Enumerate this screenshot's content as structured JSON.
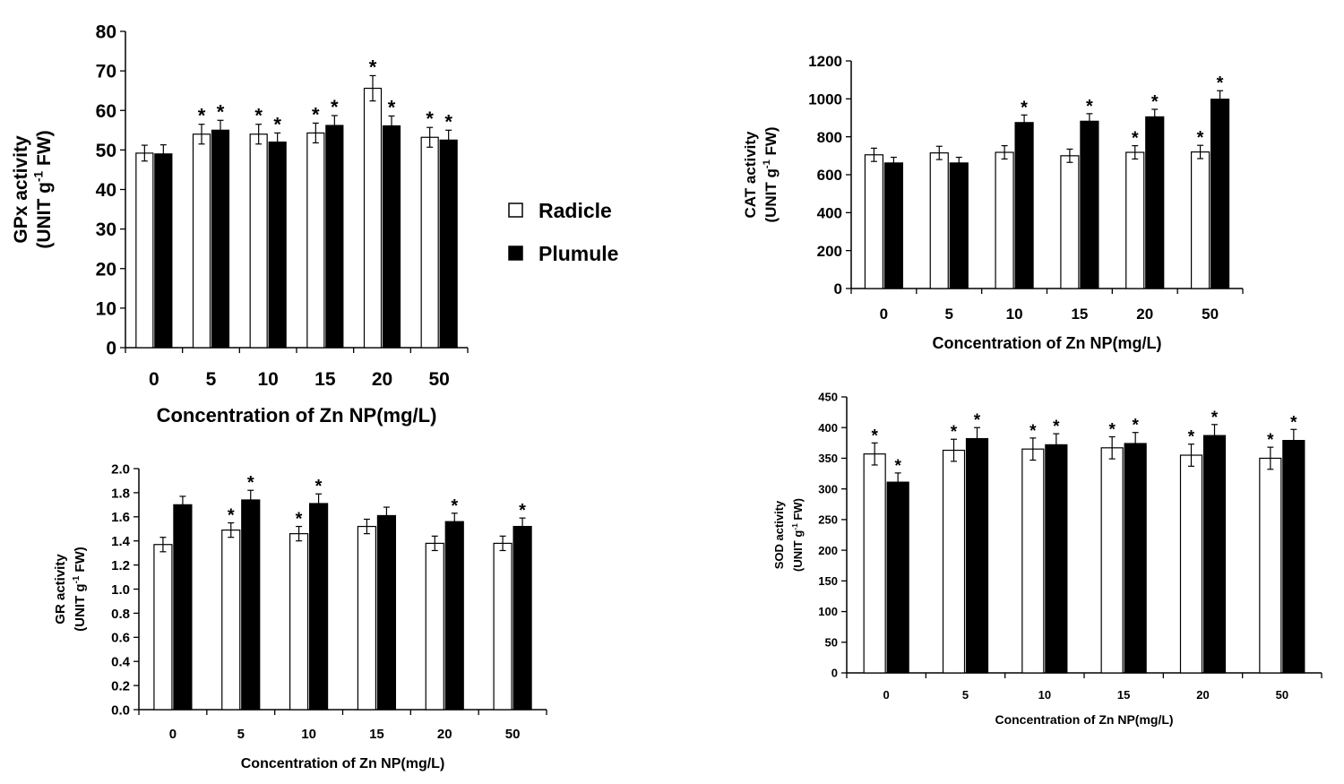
{
  "legend": {
    "entries": [
      {
        "name": "Radicle",
        "color": "#ffffff"
      },
      {
        "name": "Plumule",
        "color": "#000000"
      }
    ]
  },
  "chart_data": [
    {
      "id": "gpx",
      "type": "bar",
      "categories": [
        "0",
        "5",
        "10",
        "15",
        "20",
        "50"
      ],
      "xlabel": "Concentration of Zn NP(mg/L)",
      "ylabel_line1": "GPx activity",
      "ylabel_line2": "(UNIT g-1 FW)",
      "ylim": [
        0,
        80
      ],
      "yticks": [
        "0",
        "10",
        "20",
        "30",
        "40",
        "50",
        "60",
        "70",
        "80"
      ],
      "grid": false,
      "series": [
        {
          "name": "Radicle",
          "values": [
            49.2,
            54,
            54,
            54.3,
            65.6,
            53.2
          ],
          "errors": [
            2,
            2.5,
            2.5,
            2.5,
            3.2,
            2.5
          ],
          "significant": [
            false,
            true,
            true,
            true,
            true,
            true
          ]
        },
        {
          "name": "Plumule",
          "values": [
            49,
            55,
            52,
            56.2,
            56.1,
            52.5
          ],
          "errors": [
            2.3,
            2.5,
            2.3,
            2.5,
            2.5,
            2.5
          ],
          "significant": [
            false,
            true,
            true,
            true,
            true,
            true
          ]
        }
      ]
    },
    {
      "id": "cat",
      "type": "bar",
      "categories": [
        "0",
        "5",
        "10",
        "15",
        "20",
        "50"
      ],
      "xlabel": "Concentration of Zn NP(mg/L)",
      "ylabel_line1": "CAT  activity",
      "ylabel_line2": "(UNIT g-1 FW)",
      "ylim": [
        0,
        1200
      ],
      "yticks": [
        "0",
        "200",
        "400",
        "600",
        "800",
        "1000",
        "1200"
      ],
      "grid": false,
      "series": [
        {
          "name": "Radicle",
          "values": [
            705,
            715,
            718,
            700,
            718,
            720
          ],
          "errors": [
            35,
            35,
            35,
            35,
            35,
            35
          ],
          "significant": [
            false,
            false,
            false,
            false,
            true,
            true
          ]
        },
        {
          "name": "Plumule",
          "values": [
            662,
            662,
            875,
            882,
            905,
            998
          ],
          "errors": [
            30,
            30,
            40,
            40,
            40,
            45
          ],
          "significant": [
            false,
            false,
            true,
            true,
            true,
            true
          ]
        }
      ]
    },
    {
      "id": "gr",
      "type": "bar",
      "categories": [
        "0",
        "5",
        "10",
        "15",
        "20",
        "50"
      ],
      "xlabel": "Concentration of Zn NP(mg/L)",
      "ylabel_line1": "GR  activity",
      "ylabel_line2": "(UNIT g-1 FW)",
      "ylim": [
        0,
        2.0
      ],
      "yticks": [
        "0.0",
        "0.2",
        "0.4",
        "0.6",
        "0.8",
        "1.0",
        "1.2",
        "1.4",
        "1.6",
        "1.8",
        "2.0"
      ],
      "grid": false,
      "series": [
        {
          "name": "Radicle",
          "values": [
            1.37,
            1.49,
            1.46,
            1.52,
            1.38,
            1.38
          ],
          "errors": [
            0.06,
            0.06,
            0.06,
            0.06,
            0.06,
            0.06
          ],
          "significant": [
            false,
            true,
            true,
            false,
            false,
            false
          ]
        },
        {
          "name": "Plumule",
          "values": [
            1.7,
            1.74,
            1.71,
            1.61,
            1.56,
            1.52
          ],
          "errors": [
            0.07,
            0.08,
            0.08,
            0.07,
            0.07,
            0.07
          ],
          "significant": [
            false,
            true,
            true,
            false,
            true,
            true
          ]
        }
      ]
    },
    {
      "id": "sod",
      "type": "bar",
      "categories": [
        "0",
        "5",
        "10",
        "15",
        "20",
        "50"
      ],
      "xlabel": "Concentration of Zn NP(mg/L)",
      "ylabel_line1": "SOD  activity",
      "ylabel_line2": "(UNIT g-1 FW)",
      "ylim": [
        0,
        450
      ],
      "yticks": [
        "0",
        "50",
        "100",
        "150",
        "200",
        "250",
        "300",
        "350",
        "400",
        "450"
      ],
      "grid": false,
      "series": [
        {
          "name": "Radicle",
          "values": [
            357,
            363,
            365,
            367,
            355,
            350
          ],
          "errors": [
            18,
            18,
            18,
            18,
            18,
            18
          ],
          "significant": [
            true,
            true,
            true,
            true,
            true,
            true
          ]
        },
        {
          "name": "Plumule",
          "values": [
            311,
            382,
            372,
            374,
            387,
            379
          ],
          "errors": [
            15,
            18,
            18,
            18,
            18,
            18
          ],
          "significant": [
            true,
            true,
            true,
            true,
            true,
            true
          ]
        }
      ]
    }
  ]
}
